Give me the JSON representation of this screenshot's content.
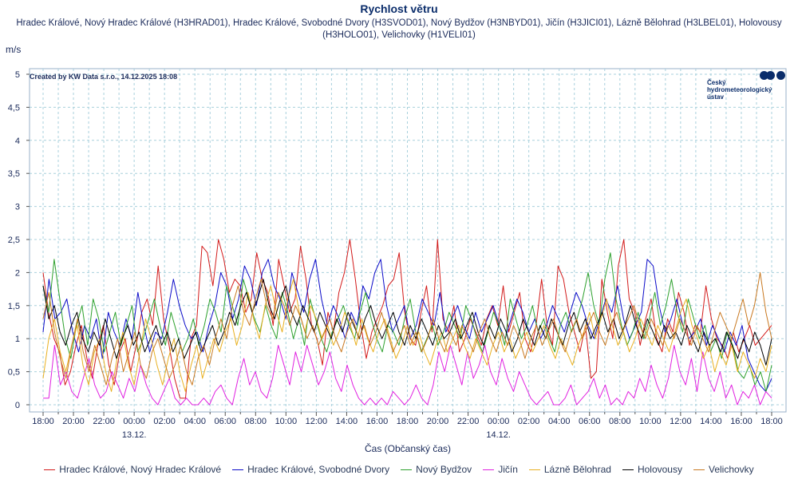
{
  "chart_data": {
    "type": "line",
    "title": "Rychlost větru",
    "subtitle": "Hradec Králové, Nový Hradec Králové (H3HRAD01), Hradec Králové, Svobodné Dvory (H3SVOD01), Nový Bydžov (H3NBYD01), Jičín (H3JICI01), Lázně Bělohrad (H3LBEL01), Holovousy (H3HOLO01), Velichovky (H1VELI01)",
    "ylabel": "m/s",
    "xlabel": "Čas (Občanský čas)",
    "credit": "Created by KW Data s.r.o., 14.12.2025 18:08",
    "ylim": [
      0,
      5
    ],
    "y_ticks": [
      "0",
      "0,5",
      "1",
      "1,5",
      "2",
      "2,5",
      "3",
      "3,5",
      "4",
      "4,5",
      "5"
    ],
    "x_ticks": [
      "18:00",
      "20:00",
      "22:00",
      "00:00",
      "02:00",
      "04:00",
      "06:00",
      "08:00",
      "10:00",
      "12:00",
      "14:00",
      "16:00",
      "18:00",
      "20:00",
      "22:00",
      "00:00",
      "02:00",
      "04:00",
      "06:00",
      "08:00",
      "10:00",
      "12:00",
      "14:00",
      "16:00",
      "18:00"
    ],
    "date_labels": [
      {
        "at": "00:00",
        "tick_index": 3,
        "label": "13.12."
      },
      {
        "at": "00:00",
        "tick_index": 15,
        "label": "14.12."
      }
    ],
    "grid": true,
    "legend_position": "bottom",
    "series": [
      {
        "name": "Hradec Králové, Nový Hradec Králové",
        "color": "#d21a1a",
        "values": [
          2.0,
          1.4,
          1.0,
          0.8,
          0.3,
          0.5,
          0.9,
          1.2,
          0.7,
          0.4,
          0.9,
          1.2,
          0.6,
          0.3,
          0.8,
          1.0,
          0.5,
          0.9,
          1.4,
          1.6,
          1.2,
          2.1,
          1.3,
          0.9,
          0.4,
          0.1,
          0.1,
          1.0,
          1.2,
          2.4,
          2.3,
          1.8,
          2.5,
          2.2,
          1.7,
          1.9,
          1.8,
          1.4,
          1.6,
          2.3,
          1.9,
          1.7,
          1.2,
          2.2,
          1.8,
          1.4,
          1.6,
          2.4,
          1.9,
          1.2,
          1.0,
          0.6,
          1.4,
          1.1,
          1.7,
          2.0,
          2.5,
          1.9,
          1.2,
          0.7,
          1.1,
          1.3,
          1.5,
          1.8,
          1.9,
          2.3,
          1.4,
          1.0,
          0.9,
          1.4,
          1.8,
          1.1,
          2.5,
          1.3,
          1.1,
          1.5,
          0.8,
          1.0,
          1.3,
          1.1,
          0.9,
          1.3,
          1.5,
          1.2,
          1.8,
          1.1,
          1.4,
          1.7,
          1.0,
          0.8,
          1.2,
          1.9,
          1.2,
          0.9,
          2.1,
          1.9,
          1.4,
          1.1,
          0.8,
          1.2,
          0.4,
          0.5,
          1.9,
          1.4,
          1.0,
          2.1,
          2.5,
          1.6,
          1.4,
          0.9,
          1.3,
          1.6,
          1.0,
          0.8,
          1.3,
          1.1,
          1.7,
          1.4,
          0.9,
          1.2,
          1.1,
          1.8,
          1.3,
          1.0,
          0.9,
          0.7,
          1.1,
          0.8,
          1.0,
          1.2,
          0.9,
          1.0,
          1.1,
          1.2
        ]
      },
      {
        "name": "Hradec Králové, Svobodné Dvory",
        "color": "#0a0ac8",
        "values": [
          1.1,
          1.9,
          1.3,
          1.4,
          1.6,
          1.1,
          0.8,
          1.2,
          1.0,
          1.3,
          0.7,
          1.4,
          1.1,
          0.9,
          1.3,
          1.0,
          1.7,
          1.2,
          0.8,
          1.1,
          1.0,
          1.4,
          1.9,
          1.5,
          1.2,
          1.0,
          1.1,
          0.8,
          1.2,
          1.5,
          2.0,
          1.8,
          1.3,
          1.6,
          2.1,
          1.9,
          1.5,
          2.0,
          2.2,
          1.8,
          1.6,
          1.3,
          2.0,
          1.7,
          1.4,
          1.9,
          2.2,
          1.6,
          1.2,
          1.5,
          1.3,
          1.0,
          1.4,
          1.2,
          1.8,
          1.6,
          2.0,
          2.2,
          1.5,
          1.1,
          1.3,
          1.5,
          1.0,
          1.2,
          1.6,
          1.4,
          1.2,
          1.7,
          1.1,
          1.3,
          1.5,
          1.2,
          1.0,
          1.4,
          1.1,
          1.3,
          1.5,
          1.2,
          1.0,
          1.3,
          1.6,
          1.4,
          1.1,
          1.3,
          1.0,
          1.2,
          1.5,
          1.3,
          1.1,
          1.4,
          1.7,
          1.5,
          1.2,
          1.0,
          1.3,
          1.6,
          1.4,
          1.8,
          1.3,
          1.0,
          1.2,
          1.4,
          2.2,
          2.1,
          1.5,
          1.1,
          1.3,
          1.6,
          1.2,
          1.0,
          1.1,
          1.3,
          0.9,
          1.2,
          1.0,
          0.8,
          1.1,
          0.9,
          1.2,
          0.7,
          0.5,
          0.3,
          0.2,
          0.4
        ]
      },
      {
        "name": "Nový Bydžov",
        "color": "#2ca02c",
        "values": [
          1.8,
          1.4,
          2.2,
          1.6,
          1.0,
          0.7,
          1.2,
          1.5,
          0.9,
          1.6,
          1.3,
          0.8,
          1.1,
          1.4,
          0.9,
          1.2,
          1.5,
          0.8,
          1.0,
          1.3,
          1.6,
          1.2,
          0.9,
          1.4,
          1.1,
          0.8,
          1.0,
          1.3,
          0.9,
          1.2,
          1.6,
          1.4,
          1.1,
          1.8,
          1.5,
          1.2,
          1.9,
          1.6,
          1.3,
          1.1,
          1.5,
          1.2,
          1.0,
          1.7,
          1.4,
          1.0,
          1.3,
          0.9,
          1.6,
          1.3,
          1.0,
          0.8,
          1.1,
          1.3,
          1.5,
          1.2,
          1.0,
          1.4,
          1.7,
          1.3,
          1.0,
          0.8,
          1.2,
          1.1,
          0.9,
          1.3,
          1.6,
          1.1,
          0.8,
          1.0,
          1.2,
          0.9,
          1.1,
          1.4,
          1.2,
          1.0,
          1.5,
          1.3,
          1.0,
          0.8,
          1.1,
          1.4,
          1.2,
          0.9,
          1.6,
          1.3,
          1.0,
          1.2,
          1.5,
          1.1,
          1.3,
          1.0,
          0.8,
          1.2,
          1.4,
          1.1,
          1.3,
          1.6,
          2.0,
          1.5,
          1.2,
          1.9,
          2.3,
          1.6,
          1.2,
          0.9,
          1.1,
          1.4,
          1.0,
          1.3,
          1.7,
          1.2,
          1.5,
          1.9,
          1.4,
          1.1,
          1.6,
          1.3,
          1.0,
          1.2,
          0.8,
          1.0,
          0.7,
          1.1,
          0.9,
          0.5,
          0.4,
          0.6,
          0.3,
          0.5,
          0.2,
          0.6
        ]
      },
      {
        "name": "Jičín",
        "color": "#e020e0",
        "values": [
          0.1,
          0.1,
          0.9,
          0.3,
          0.5,
          0.2,
          0.1,
          0.4,
          0.7,
          0.3,
          0.1,
          0.2,
          0.5,
          0.3,
          0.1,
          0.4,
          0.2,
          0.6,
          0.3,
          0.1,
          0.0,
          0.2,
          0.4,
          0.1,
          0.0,
          0.1,
          0.0,
          0.0,
          0.1,
          0.0,
          0.2,
          0.3,
          0.1,
          0.0,
          0.4,
          0.7,
          0.3,
          0.5,
          0.2,
          0.1,
          0.4,
          0.9,
          0.6,
          0.3,
          0.8,
          0.5,
          0.9,
          0.6,
          0.3,
          0.5,
          0.8,
          0.4,
          0.2,
          0.6,
          0.3,
          0.1,
          0.0,
          0.1,
          0.0,
          0.1,
          0.0,
          0.2,
          0.1,
          0.0,
          0.1,
          0.3,
          0.1,
          0.0,
          0.3,
          0.8,
          0.5,
          0.9,
          0.6,
          0.3,
          0.8,
          0.4,
          0.6,
          0.9,
          0.5,
          0.3,
          0.7,
          0.4,
          0.2,
          0.5,
          0.3,
          0.1,
          0.0,
          0.1,
          0.2,
          0.0,
          0.0,
          0.1,
          0.3,
          0.0,
          0.1,
          0.2,
          0.4,
          0.1,
          0.3,
          0.0,
          0.1,
          0.0,
          0.2,
          0.1,
          0.4,
          0.2,
          0.6,
          0.3,
          0.1,
          0.4,
          0.9,
          0.5,
          0.3,
          0.7,
          0.2,
          0.8,
          0.4,
          0.2,
          0.5,
          0.1,
          0.3,
          0.0,
          0.2,
          0.1,
          0.3,
          0.0,
          0.2,
          0.1
        ]
      },
      {
        "name": "Lázně Bělohrad",
        "color": "#e8b020",
        "values": [
          0.4,
          1.0,
          1.3,
          0.8,
          0.5,
          0.9,
          1.2,
          0.6,
          0.3,
          0.8,
          1.0,
          0.5,
          0.2,
          0.7,
          1.1,
          0.6,
          0.3,
          0.8,
          1.3,
          1.0,
          0.6,
          0.3,
          0.7,
          1.0,
          0.5,
          0.2,
          0.6,
          0.9,
          0.4,
          0.7,
          1.0,
          0.8,
          1.1,
          1.3,
          0.9,
          1.2,
          1.7,
          1.3,
          1.0,
          1.5,
          1.8,
          1.4,
          1.1,
          1.6,
          1.9,
          1.4,
          1.1,
          1.5,
          1.3,
          1.0,
          1.2,
          0.9,
          1.1,
          1.4,
          1.2,
          0.9,
          1.3,
          1.0,
          0.8,
          1.1,
          1.3,
          1.0,
          0.7,
          0.9,
          1.2,
          0.9,
          1.1,
          0.8,
          0.6,
          0.9,
          1.1,
          0.8,
          1.0,
          1.2,
          0.9,
          0.7,
          1.0,
          0.8,
          0.6,
          0.9,
          1.1,
          0.8,
          1.0,
          0.7,
          0.9,
          1.1,
          0.8,
          1.0,
          1.2,
          0.9,
          0.7,
          1.0,
          0.8,
          0.6,
          0.9,
          1.1,
          1.4,
          1.0,
          1.3,
          1.6,
          1.2,
          0.9,
          1.1,
          0.8,
          1.0,
          1.3,
          1.1,
          0.9,
          1.2,
          1.0,
          0.8,
          1.1,
          1.4,
          1.6,
          1.2,
          1.0,
          0.7,
          0.9,
          0.5,
          0.8,
          0.6,
          0.9,
          0.5,
          0.8,
          0.6,
          0.4,
          0.7,
          0.5,
          0.9
        ]
      },
      {
        "name": "Holovousy",
        "color": "#000000",
        "values": [
          1.8,
          1.3,
          1.5,
          1.1,
          0.9,
          1.2,
          1.4,
          1.0,
          0.8,
          1.1,
          0.9,
          1.3,
          1.0,
          0.7,
          1.0,
          1.2,
          0.9,
          1.1,
          0.8,
          1.0,
          1.2,
          0.9,
          1.1,
          0.8,
          1.0,
          0.7,
          0.9,
          1.1,
          0.8,
          1.0,
          1.2,
          0.9,
          1.1,
          1.4,
          1.2,
          1.5,
          1.7,
          1.4,
          1.6,
          1.9,
          1.5,
          1.3,
          1.6,
          1.8,
          1.4,
          1.2,
          1.5,
          1.3,
          1.1,
          1.4,
          1.2,
          1.0,
          1.3,
          1.1,
          1.4,
          1.2,
          1.0,
          1.3,
          1.5,
          1.2,
          1.0,
          1.2,
          1.4,
          1.1,
          0.9,
          1.2,
          1.0,
          1.3,
          1.1,
          0.9,
          1.2,
          1.0,
          1.1,
          1.3,
          1.0,
          1.2,
          1.4,
          1.1,
          0.9,
          1.2,
          1.0,
          1.3,
          1.1,
          0.8,
          1.0,
          1.3,
          1.1,
          0.9,
          1.2,
          1.0,
          1.3,
          1.1,
          0.9,
          1.2,
          1.4,
          1.1,
          1.3,
          1.0,
          1.2,
          1.4,
          1.1,
          1.3,
          1.0,
          1.2,
          1.5,
          1.2,
          1.0,
          1.3,
          1.1,
          0.9,
          1.2,
          1.0,
          1.1,
          0.9,
          1.2,
          1.0,
          0.8,
          1.1,
          0.9,
          1.0,
          0.8,
          1.1,
          0.9,
          0.7,
          1.0,
          0.8,
          1.1,
          0.9,
          0.6,
          1.0
        ]
      },
      {
        "name": "Velichovky",
        "color": "#c87820",
        "values": [
          1.3,
          1.7,
          1.1,
          0.7,
          0.4,
          0.9,
          1.3,
          0.8,
          0.5,
          0.9,
          0.6,
          0.3,
          0.7,
          1.0,
          0.5,
          0.8,
          1.1,
          0.6,
          0.4,
          0.8,
          1.0,
          0.7,
          0.4,
          0.6,
          0.9,
          0.5,
          0.3,
          0.7,
          0.9,
          0.6,
          1.0,
          1.3,
          1.0,
          1.5,
          1.8,
          1.4,
          1.2,
          1.6,
          1.9,
          1.5,
          1.3,
          1.7,
          1.5,
          1.2,
          1.5,
          1.3,
          1.0,
          1.2,
          0.9,
          1.1,
          1.3,
          1.0,
          0.8,
          1.1,
          1.3,
          1.0,
          1.2,
          0.9,
          1.1,
          1.4,
          1.1,
          0.8,
          1.0,
          1.2,
          0.9,
          1.1,
          0.8,
          1.0,
          1.3,
          1.0,
          0.8,
          1.1,
          0.9,
          1.2,
          1.0,
          0.8,
          1.1,
          1.3,
          1.0,
          0.8,
          1.1,
          0.9,
          1.2,
          1.0,
          0.7,
          1.0,
          1.2,
          0.9,
          1.1,
          1.3,
          1.0,
          0.8,
          1.1,
          1.3,
          1.0,
          1.2,
          1.4,
          1.1,
          0.9,
          1.2,
          1.4,
          1.1,
          1.3,
          1.5,
          1.2,
          1.0,
          1.3,
          1.1,
          0.9,
          1.2,
          1.0,
          1.3,
          1.1,
          0.9,
          1.2,
          1.0,
          0.8,
          1.1,
          1.4,
          1.2,
          1.0,
          1.3,
          1.6,
          1.2,
          1.5,
          2.0,
          1.4,
          1.0
        ]
      }
    ]
  },
  "logo": {
    "line1": "Český",
    "line2": "hydrometeorologický",
    "line3": "ústav"
  }
}
